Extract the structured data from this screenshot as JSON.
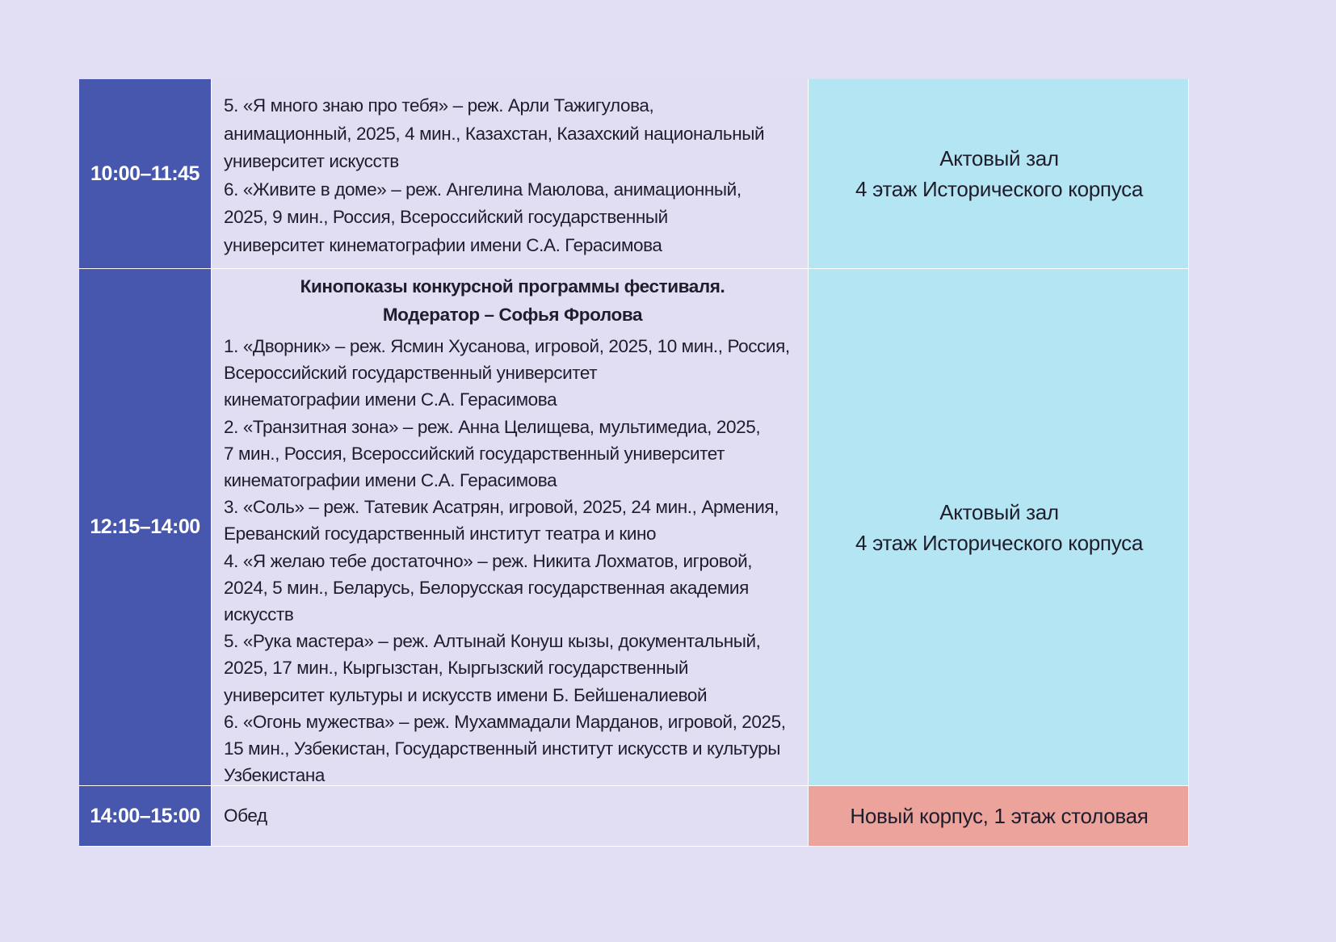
{
  "schedule": {
    "rows": [
      {
        "time": "10:00–11:45",
        "items": [
          "5. «Я много знаю про тебя» – реж. Арли Тажигулова,",
          "анимационный, 2025, 4 мин., Казахстан, Казахский национальный",
          "университет искусств",
          "6. «Живите в доме» – реж. Ангелина Маюлова, анимационный,",
          "2025, 9 мин., Россия, Всероссийский государственный",
          "университет кинематографии имени С.А. Герасимова"
        ],
        "place": [
          "Актовый зал",
          "4 этаж Исторического корпуса"
        ]
      },
      {
        "time": "12:15–14:00",
        "heading": [
          "Кинопоказы конкурсной программы фестиваля.",
          "Модератор – Софья Фролова"
        ],
        "items": [
          "1. «Дворник» – реж. Ясмин Хусанова, игровой, 2025, 10 мин., Россия,",
          "Всероссийский государственный университет",
          "кинематографии имени С.А. Герасимова",
          "2. «Транзитная зона» – реж. Анна Целищева, мультимедиа, 2025,",
          "7 мин., Россия, Всероссийский государственный университет",
          "кинематографии имени С.А. Герасимова",
          "3. «Соль» – реж. Татевик Асатрян, игровой, 2025, 24 мин., Армения,",
          "Ереванский государственный институт театра и кино",
          "4. «Я желаю тебе достаточно» – реж. Никита Лохматов, игровой,",
          "2024, 5 мин., Беларусь, Белорусская государственная академия",
          "искусств",
          "5. «Рука мастера» – реж. Алтынай Конуш кызы, документальный,",
          "2025, 17 мин., Кыргызстан, Кыргызский государственный",
          "университет культуры и искусств имени Б. Бейшеналиевой",
          "6. «Огонь мужества» – реж. Мухаммадали Марданов, игровой, 2025,",
          "15 мин., Узбекистан, Государственный институт искусств и культуры",
          "Узбекистана"
        ],
        "place": [
          "Актовый зал",
          "4 этаж Исторического корпуса"
        ]
      },
      {
        "time": "14:00–15:00",
        "items": [
          "Обед"
        ],
        "place": [
          "Новый корпус, 1 этаж столовая"
        ]
      }
    ],
    "colors": {
      "page_background": "#e2def3",
      "time_column": "#4757ad",
      "description_column": "#e1ddf2",
      "place_auditorium": "#b3e6f2",
      "place_canteen": "#eba39c"
    }
  }
}
